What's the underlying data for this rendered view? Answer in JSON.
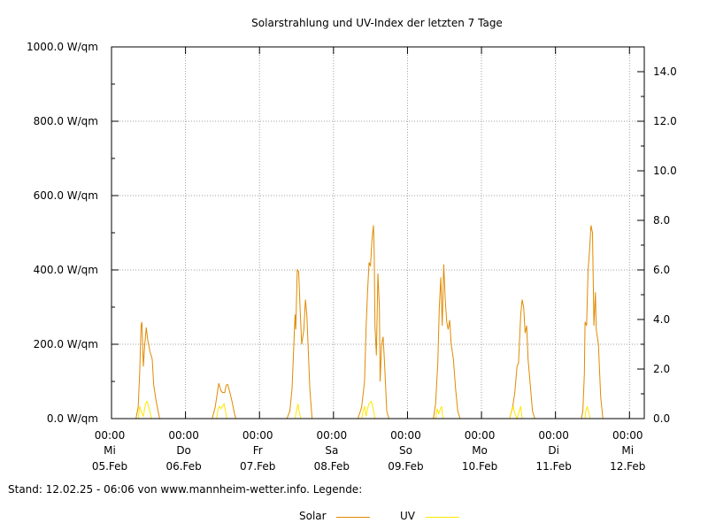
{
  "chart_data": {
    "type": "line",
    "title": "Solarstrahlung und UV-Index der letzten 7 Tage",
    "y_left": {
      "ylim": [
        0,
        1000
      ],
      "ticks": [
        0,
        200,
        400,
        600,
        800,
        1000
      ],
      "tick_labels": [
        "0.0 W/qm",
        "200.0 W/qm",
        "400.0 W/qm",
        "600.0 W/qm",
        "800.0 W/qm",
        "1000.0 W/qm"
      ]
    },
    "y_right": {
      "ylim": [
        0,
        15
      ],
      "ticks": [
        0,
        2,
        4,
        6,
        8,
        10,
        12,
        14
      ],
      "tick_labels": [
        "0.0",
        "2.0",
        "4.0",
        "6.0",
        "8.0",
        "10.0",
        "12.0",
        "14.0"
      ]
    },
    "x_range_days": [
      0,
      7.2
    ],
    "x_ticks": [
      {
        "time": "00:00",
        "weekday": "Mi",
        "date": "05.Feb"
      },
      {
        "time": "00:00",
        "weekday": "Do",
        "date": "06.Feb"
      },
      {
        "time": "00:00",
        "weekday": "Fr",
        "date": "07.Feb"
      },
      {
        "time": "00:00",
        "weekday": "Sa",
        "date": "08.Feb"
      },
      {
        "time": "00:00",
        "weekday": "So",
        "date": "09.Feb"
      },
      {
        "time": "00:00",
        "weekday": "Mo",
        "date": "10.Feb"
      },
      {
        "time": "00:00",
        "weekday": "Di",
        "date": "11.Feb"
      },
      {
        "time": "00:00",
        "weekday": "Mi",
        "date": "12.Feb"
      }
    ],
    "grid": true,
    "series": [
      {
        "name": "Solar",
        "axis": "left",
        "color": "#e08a00",
        "points": [
          [
            0.33,
            0
          ],
          [
            0.36,
            30
          ],
          [
            0.38,
            120
          ],
          [
            0.4,
            250
          ],
          [
            0.41,
            260
          ],
          [
            0.43,
            140
          ],
          [
            0.45,
            200
          ],
          [
            0.47,
            245
          ],
          [
            0.49,
            210
          ],
          [
            0.52,
            180
          ],
          [
            0.55,
            160
          ],
          [
            0.57,
            90
          ],
          [
            0.6,
            50
          ],
          [
            0.63,
            20
          ],
          [
            0.65,
            0
          ],
          [
            1.36,
            0
          ],
          [
            1.4,
            30
          ],
          [
            1.43,
            70
          ],
          [
            1.45,
            95
          ],
          [
            1.48,
            75
          ],
          [
            1.5,
            70
          ],
          [
            1.53,
            70
          ],
          [
            1.55,
            90
          ],
          [
            1.57,
            92
          ],
          [
            1.6,
            70
          ],
          [
            1.63,
            45
          ],
          [
            1.66,
            15
          ],
          [
            1.68,
            0
          ],
          [
            2.37,
            0
          ],
          [
            2.41,
            20
          ],
          [
            2.44,
            80
          ],
          [
            2.46,
            180
          ],
          [
            2.48,
            280
          ],
          [
            2.49,
            240
          ],
          [
            2.51,
            400
          ],
          [
            2.53,
            395
          ],
          [
            2.55,
            290
          ],
          [
            2.57,
            200
          ],
          [
            2.6,
            240
          ],
          [
            2.62,
            320
          ],
          [
            2.64,
            280
          ],
          [
            2.66,
            180
          ],
          [
            2.68,
            80
          ],
          [
            2.71,
            0
          ],
          [
            3.33,
            0
          ],
          [
            3.38,
            30
          ],
          [
            3.42,
            100
          ],
          [
            3.44,
            240
          ],
          [
            3.46,
            340
          ],
          [
            3.48,
            420
          ],
          [
            3.5,
            410
          ],
          [
            3.52,
            480
          ],
          [
            3.54,
            520
          ],
          [
            3.55,
            450
          ],
          [
            3.56,
            250
          ],
          [
            3.58,
            170
          ],
          [
            3.6,
            390
          ],
          [
            3.62,
            300
          ],
          [
            3.63,
            100
          ],
          [
            3.65,
            200
          ],
          [
            3.67,
            220
          ],
          [
            3.69,
            150
          ],
          [
            3.72,
            20
          ],
          [
            3.75,
            0
          ],
          [
            4.35,
            0
          ],
          [
            4.38,
            40
          ],
          [
            4.41,
            150
          ],
          [
            4.43,
            300
          ],
          [
            4.45,
            380
          ],
          [
            4.47,
            250
          ],
          [
            4.49,
            415
          ],
          [
            4.51,
            320
          ],
          [
            4.53,
            260
          ],
          [
            4.55,
            240
          ],
          [
            4.57,
            265
          ],
          [
            4.59,
            200
          ],
          [
            4.62,
            160
          ],
          [
            4.65,
            80
          ],
          [
            4.68,
            20
          ],
          [
            4.71,
            0
          ],
          [
            5.38,
            0
          ],
          [
            5.42,
            30
          ],
          [
            5.45,
            70
          ],
          [
            5.48,
            140
          ],
          [
            5.5,
            150
          ],
          [
            5.53,
            280
          ],
          [
            5.55,
            320
          ],
          [
            5.57,
            300
          ],
          [
            5.59,
            230
          ],
          [
            5.61,
            250
          ],
          [
            5.63,
            160
          ],
          [
            5.66,
            90
          ],
          [
            5.69,
            20
          ],
          [
            5.72,
            0
          ],
          [
            6.35,
            0
          ],
          [
            6.37,
            20
          ],
          [
            6.39,
            120
          ],
          [
            6.4,
            260
          ],
          [
            6.42,
            250
          ],
          [
            6.44,
            400
          ],
          [
            6.46,
            450
          ],
          [
            6.48,
            520
          ],
          [
            6.5,
            500
          ],
          [
            6.52,
            250
          ],
          [
            6.54,
            340
          ],
          [
            6.55,
            240
          ],
          [
            6.58,
            200
          ],
          [
            6.61,
            60
          ],
          [
            6.64,
            0
          ]
        ]
      },
      {
        "name": "UV",
        "axis": "right",
        "color": "#ffe800",
        "points": [
          [
            0.36,
            0
          ],
          [
            0.38,
            0.5
          ],
          [
            0.4,
            0.3
          ],
          [
            0.43,
            0.1
          ],
          [
            0.46,
            0.6
          ],
          [
            0.48,
            0.7
          ],
          [
            0.51,
            0.4
          ],
          [
            0.54,
            0
          ],
          [
            1.42,
            0
          ],
          [
            1.44,
            0.4
          ],
          [
            1.46,
            0.5
          ],
          [
            1.48,
            0.4
          ],
          [
            1.5,
            0.5
          ],
          [
            1.52,
            0.6
          ],
          [
            1.54,
            0.3
          ],
          [
            1.56,
            0
          ],
          [
            2.48,
            0
          ],
          [
            2.5,
            0.3
          ],
          [
            2.52,
            0.6
          ],
          [
            2.54,
            0.2
          ],
          [
            2.56,
            0
          ],
          [
            3.38,
            0
          ],
          [
            3.4,
            0.3
          ],
          [
            3.42,
            0.5
          ],
          [
            3.44,
            0.1
          ],
          [
            3.46,
            0.4
          ],
          [
            3.48,
            0.6
          ],
          [
            3.51,
            0.7
          ],
          [
            3.53,
            0.5
          ],
          [
            3.56,
            0
          ],
          [
            4.38,
            0
          ],
          [
            4.4,
            0.4
          ],
          [
            4.42,
            0.2
          ],
          [
            4.46,
            0.5
          ],
          [
            4.48,
            0
          ],
          [
            5.38,
            0
          ],
          [
            5.41,
            0.3
          ],
          [
            5.43,
            0.5
          ],
          [
            5.45,
            0.2
          ],
          [
            5.48,
            0
          ],
          [
            5.51,
            0.3
          ],
          [
            5.53,
            0.5
          ],
          [
            5.55,
            0
          ],
          [
            6.4,
            0
          ],
          [
            6.41,
            0.3
          ],
          [
            6.43,
            0.5
          ],
          [
            6.45,
            0.2
          ],
          [
            6.47,
            0
          ]
        ]
      }
    ]
  },
  "footer": {
    "text": "Stand: 12.02.25 - 06:06 von www.mannheim-wetter.info. Legende:"
  },
  "legend": {
    "items": [
      {
        "label": "Solar",
        "color": "#e08a00"
      },
      {
        "label": "UV",
        "color": "#ffe800"
      }
    ]
  }
}
